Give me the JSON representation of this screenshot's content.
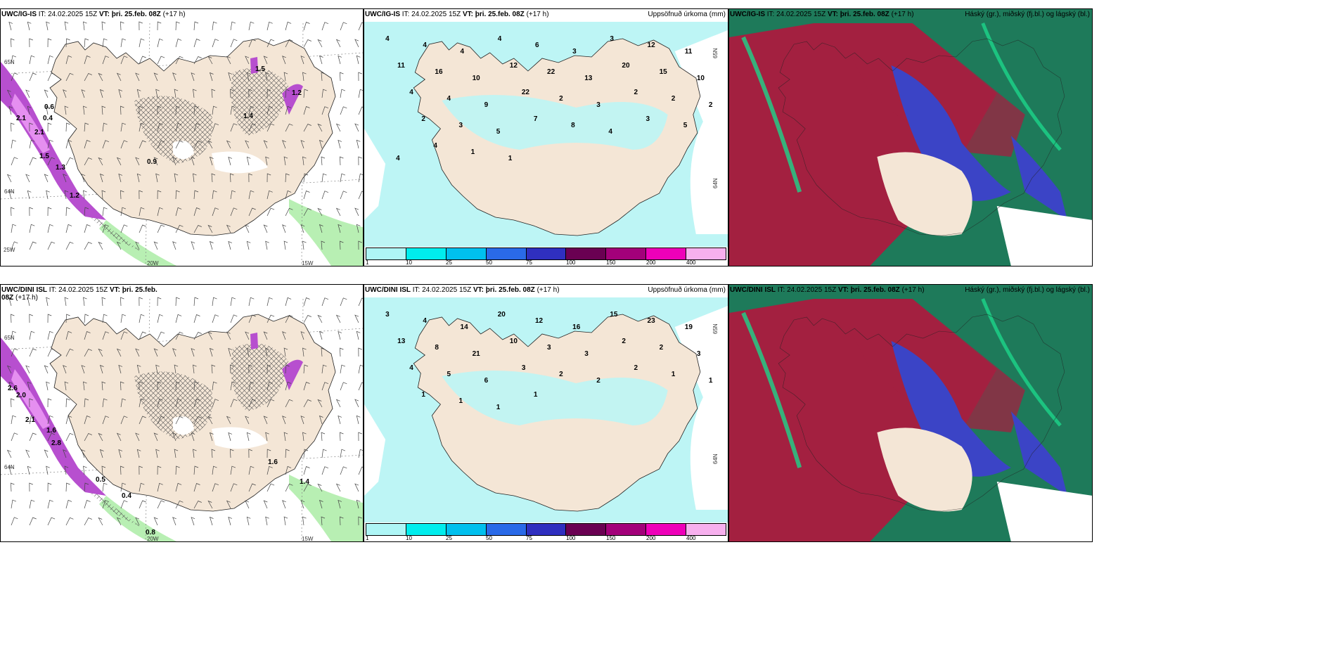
{
  "panels": [
    {
      "model": "UWC/IG-IS",
      "it_label": "IT:",
      "it_value": "24.02.2025 15Z",
      "vt_label": "VT:",
      "vt_value": "þri. 25.feb. 08Z",
      "lead": "(+17 h)",
      "right_title": "",
      "kind": "wind",
      "values": [
        "2.1",
        "2.1",
        "1.5",
        "1.3",
        "1.2",
        "0.6",
        "0.4",
        "1.5",
        "1.2",
        "1.4",
        "0.9"
      ],
      "axes": [
        "65N",
        "64N",
        "25W",
        "15W",
        "20W"
      ]
    },
    {
      "model": "UWC/IG-IS",
      "it_label": "IT:",
      "it_value": "24.02.2025 15Z",
      "vt_label": "VT:",
      "vt_value": "þri. 25.feb. 08Z",
      "lead": "(+17 h)",
      "right_title": "Uppsöfnuð úrkoma (mm)",
      "kind": "precip",
      "values": [
        "4",
        "4",
        "4",
        "4",
        "6",
        "3",
        "3",
        "12",
        "11",
        "11",
        "16",
        "10",
        "12",
        "22",
        "13",
        "20",
        "15",
        "10",
        "4",
        "4",
        "9",
        "22",
        "2",
        "3",
        "2",
        "2",
        "2",
        "2",
        "3",
        "5",
        "7",
        "8",
        "4",
        "3",
        "5",
        "4",
        "4",
        "1",
        "1"
      ],
      "axes": [
        "65N",
        "64N"
      ]
    },
    {
      "model": "UWC/IG-IS",
      "it_label": "IT:",
      "it_value": "24.02.2025 15Z",
      "vt_label": "VT:",
      "vt_value": "þri. 25.feb. 08Z",
      "lead": "(+17 h)",
      "right_title": "Háský (gr.), miðský (fj.bl.) og lágský (bl.)",
      "kind": "cloud",
      "values": [],
      "axes": []
    },
    {
      "model": "UWC/DINI ISL",
      "it_label": "IT:",
      "it_value": "24.02.2025 15Z",
      "vt_label": "VT:",
      "vt_value": "þri. 25.feb. 08Z",
      "lead": "(+17 h)",
      "right_title": "",
      "kind": "wind",
      "values": [
        "2.6",
        "2.0",
        "2.1",
        "1.6",
        "2.8",
        "0.5",
        "0.4",
        "1.6",
        "1.4",
        "0.8"
      ],
      "axes": [
        "65N",
        "64N",
        "15W",
        "20W"
      ]
    },
    {
      "model": "UWC/DINI ISL",
      "it_label": "IT:",
      "it_value": "24.02.2025 15Z",
      "vt_label": "VT:",
      "vt_value": "þri. 25.feb. 08Z",
      "lead": "(+17 h)",
      "right_title": "Uppsöfnuð úrkoma (mm)",
      "kind": "precip",
      "values": [
        "3",
        "4",
        "14",
        "20",
        "12",
        "16",
        "15",
        "23",
        "19",
        "13",
        "8",
        "21",
        "10",
        "3",
        "3",
        "2",
        "2",
        "3",
        "4",
        "5",
        "6",
        "3",
        "2",
        "2",
        "2",
        "1",
        "1",
        "1",
        "1",
        "1",
        "1"
      ],
      "axes": [
        "65N",
        "64N"
      ]
    },
    {
      "model": "UWC/DINI ISL",
      "it_label": "IT:",
      "it_value": "24.02.2025 15Z",
      "vt_label": "VT:",
      "vt_value": "þri. 25.feb. 08Z",
      "lead": "(+17 h)",
      "right_title": "Háský (gr.), miðský (fj.bl.) og lágský (bl.)",
      "kind": "cloud",
      "values": [],
      "axes": []
    }
  ],
  "legend": {
    "ticks": [
      "1",
      "10",
      "25",
      "50",
      "75",
      "100",
      "150",
      "200",
      "400"
    ],
    "colors": [
      "#aef6f6",
      "#00eded",
      "#00c0ee",
      "#2a6ae8",
      "#2f2fbf",
      "#6a0052",
      "#a3007a",
      "#ee00b9",
      "#f7b0ee"
    ]
  },
  "colors": {
    "land": "#f4e6d6",
    "wind_precip": "#b74fcf",
    "wind_light": "#e58ff0",
    "green": "#b8efb3",
    "cyan_field": "#bdf5f5",
    "cloud_high": "#1e7a5a",
    "cloud_mid": "#a32040",
    "cloud_low": "#3b44c6"
  }
}
